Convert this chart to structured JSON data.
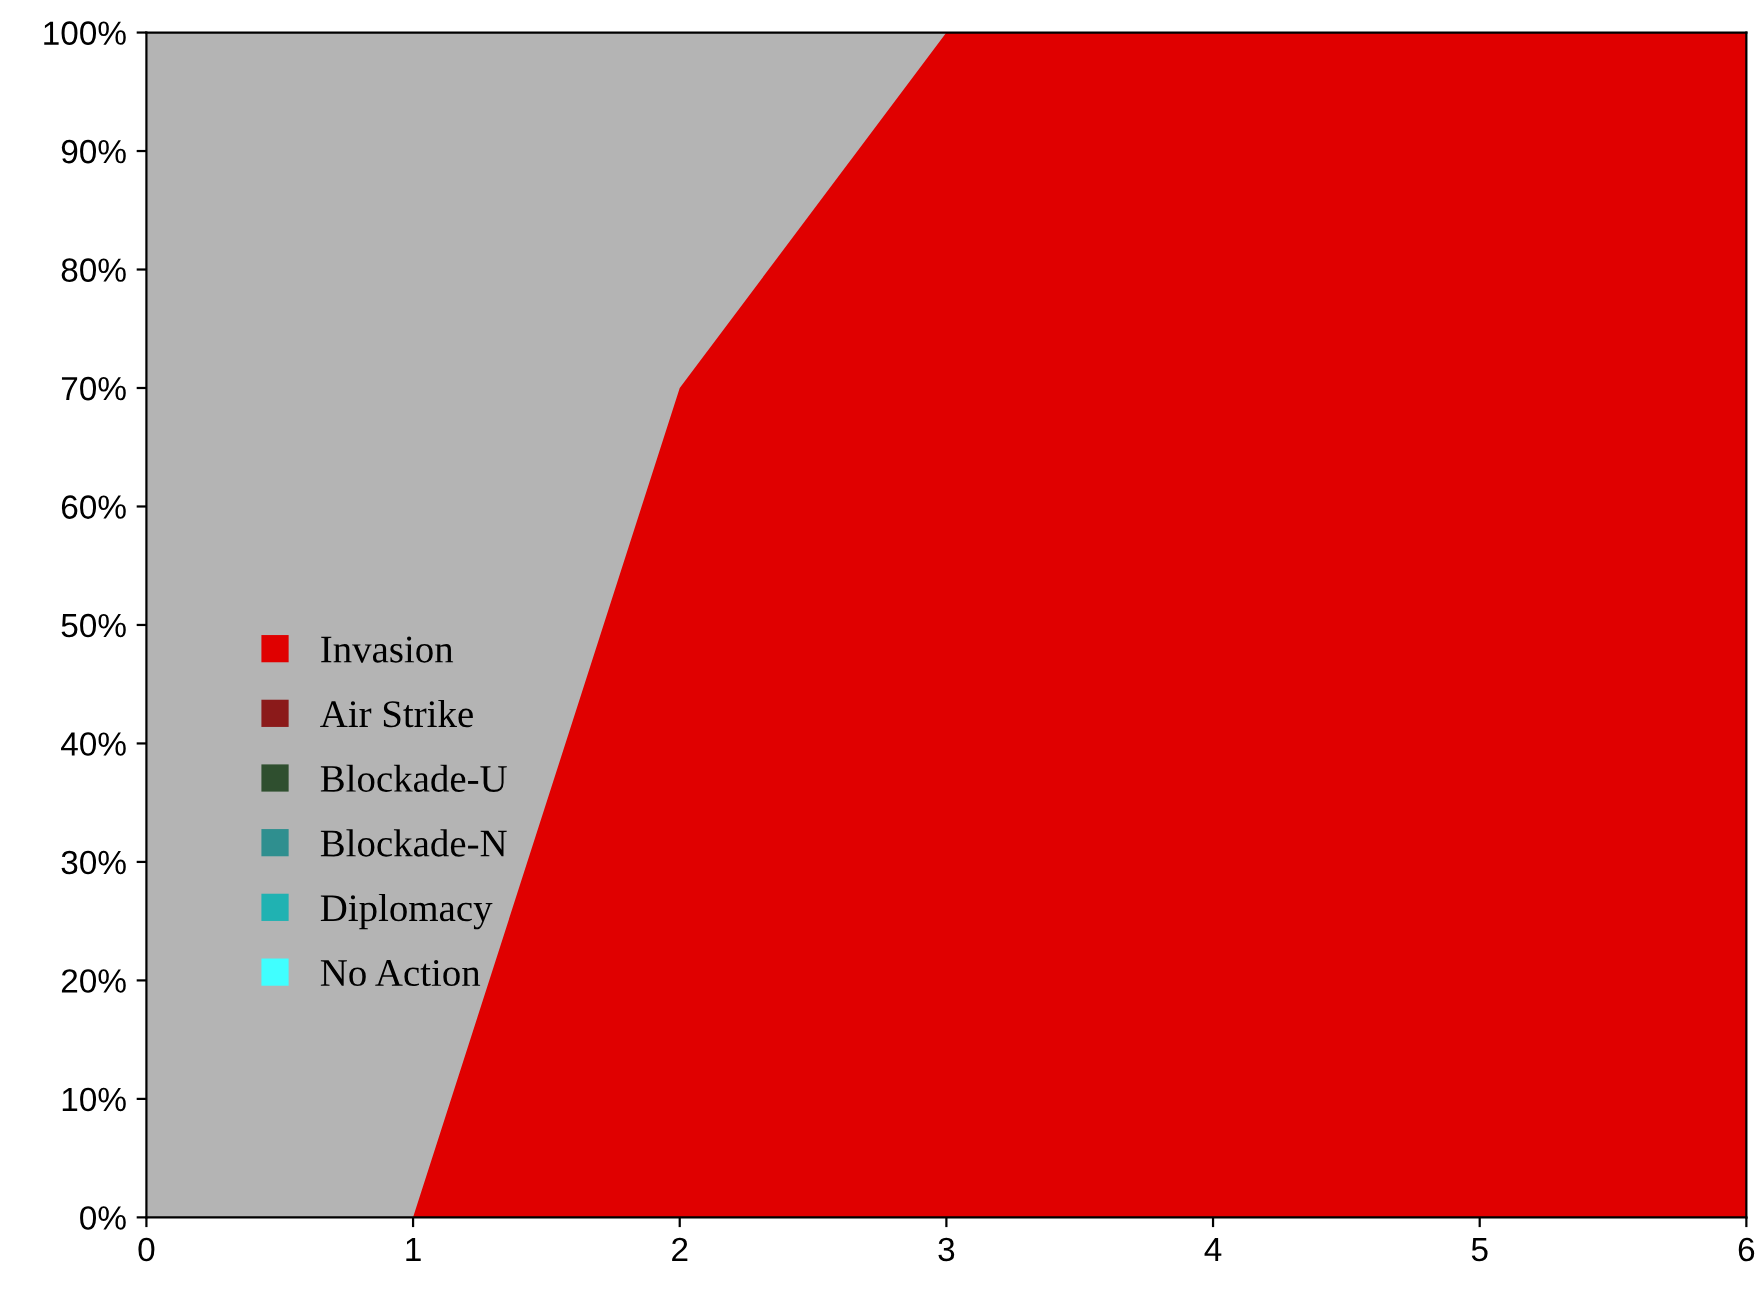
{
  "chart_data": {
    "type": "area",
    "x": [
      0,
      1,
      2,
      3,
      4,
      5,
      6
    ],
    "series": [
      {
        "name": "Invasion",
        "color": "#e00000",
        "values": [
          0,
          0,
          70,
          100,
          100,
          100,
          100
        ]
      },
      {
        "name": "Air Strike",
        "color": "#8b1a1a",
        "values": [
          null,
          null,
          null,
          null,
          null,
          null,
          null
        ]
      },
      {
        "name": "Blockade-U",
        "color": "#2f4f2f",
        "values": [
          null,
          null,
          null,
          null,
          null,
          null,
          null
        ]
      },
      {
        "name": "Blockade-N",
        "color": "#2f8f8f",
        "values": [
          null,
          null,
          null,
          null,
          null,
          null,
          null
        ]
      },
      {
        "name": "Diplomacy",
        "color": "#20b2b2",
        "values": [
          null,
          null,
          null,
          null,
          null,
          null,
          null
        ]
      },
      {
        "name": "No Action",
        "color": "#40ffff",
        "values": [
          null,
          null,
          null,
          null,
          null,
          null,
          null
        ]
      }
    ],
    "xlim": [
      0,
      6
    ],
    "xticks": [
      0,
      1,
      2,
      3,
      4,
      5,
      6
    ],
    "ylim": [
      0,
      100
    ],
    "yticks": [
      {
        "value": 0,
        "label": "0%"
      },
      {
        "value": 10,
        "label": "10%"
      },
      {
        "value": 20,
        "label": "20%"
      },
      {
        "value": 30,
        "label": "30%"
      },
      {
        "value": 40,
        "label": "40%"
      },
      {
        "value": 50,
        "label": "50%"
      },
      {
        "value": 60,
        "label": "60%"
      },
      {
        "value": 70,
        "label": "70%"
      },
      {
        "value": 80,
        "label": "80%"
      },
      {
        "value": 90,
        "label": "90%"
      },
      {
        "value": 100,
        "label": "100%"
      }
    ],
    "grid": false,
    "legend": "left"
  }
}
